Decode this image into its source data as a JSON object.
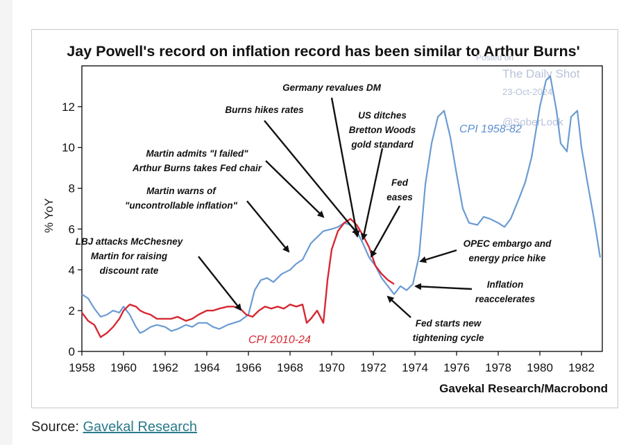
{
  "source": {
    "prefix": "Source:",
    "link_text": "Gavekal Research"
  },
  "watermark": {
    "line1": "Posted on",
    "line2": "The Daily Shot",
    "line3": "23-Oct-2024",
    "line4": "@SoberLook"
  },
  "chart_data": {
    "type": "line",
    "title": "Jay Powell's record on inflation record has been similar to Arthur Burns'",
    "ylabel": "% YoY",
    "xlabel": "",
    "credit": "Gavekal Research/Macrobond",
    "xlim": [
      1958,
      1983
    ],
    "ylim": [
      0,
      14
    ],
    "xticks": [
      1958,
      1960,
      1962,
      1964,
      1966,
      1968,
      1970,
      1972,
      1974,
      1976,
      1978,
      1980,
      1982
    ],
    "yticks": [
      0,
      2,
      4,
      6,
      8,
      10,
      12
    ],
    "grid": false,
    "series": [
      {
        "name": "CPI 1958-82",
        "color": "#6a9bd3",
        "x": [
          1958.0,
          1958.3,
          1958.6,
          1958.9,
          1959.2,
          1959.5,
          1959.8,
          1960.0,
          1960.3,
          1960.6,
          1960.8,
          1961.0,
          1961.3,
          1961.6,
          1962.0,
          1962.3,
          1962.6,
          1963.0,
          1963.3,
          1963.6,
          1964.0,
          1964.3,
          1964.6,
          1965.0,
          1965.3,
          1965.6,
          1966.0,
          1966.3,
          1966.6,
          1966.9,
          1967.2,
          1967.6,
          1968.0,
          1968.3,
          1968.6,
          1969.0,
          1969.3,
          1969.6,
          1970.0,
          1970.3,
          1970.6,
          1970.9,
          1971.2,
          1971.5,
          1971.8,
          1972.1,
          1972.4,
          1972.7,
          1973.0,
          1973.3,
          1973.6,
          1973.9,
          1974.2,
          1974.5,
          1974.8,
          1975.1,
          1975.4,
          1975.7,
          1976.0,
          1976.3,
          1976.6,
          1977.0,
          1977.3,
          1977.6,
          1978.0,
          1978.3,
          1978.6,
          1979.0,
          1979.3,
          1979.6,
          1980.0,
          1980.3,
          1980.5,
          1980.8,
          1981.0,
          1981.3,
          1981.5,
          1981.8,
          1982.0,
          1982.3,
          1982.6,
          1982.9
        ],
        "values": [
          2.8,
          2.6,
          2.1,
          1.7,
          1.8,
          2.0,
          1.9,
          2.2,
          1.8,
          1.2,
          0.9,
          1.0,
          1.2,
          1.3,
          1.2,
          1.0,
          1.1,
          1.3,
          1.2,
          1.4,
          1.4,
          1.2,
          1.1,
          1.3,
          1.4,
          1.5,
          1.8,
          3.0,
          3.5,
          3.6,
          3.4,
          3.8,
          4.0,
          4.3,
          4.5,
          5.3,
          5.6,
          5.9,
          6.0,
          6.1,
          6.3,
          6.2,
          5.9,
          5.3,
          4.6,
          4.2,
          3.6,
          3.2,
          2.8,
          3.2,
          3.0,
          3.3,
          4.7,
          8.2,
          10.2,
          11.5,
          11.8,
          10.5,
          8.7,
          7.0,
          6.3,
          6.2,
          6.6,
          6.5,
          6.3,
          6.1,
          6.5,
          7.5,
          8.3,
          9.5,
          12.0,
          13.3,
          13.5,
          11.8,
          10.2,
          9.8,
          11.5,
          11.8,
          10.0,
          8.2,
          6.5,
          4.6
        ]
      },
      {
        "name": "CPI 2010-24",
        "color": "#d62832",
        "x": [
          1958.0,
          1958.3,
          1958.6,
          1958.9,
          1959.2,
          1959.5,
          1959.8,
          1960.0,
          1960.3,
          1960.6,
          1960.8,
          1961.0,
          1961.3,
          1961.6,
          1962.0,
          1962.3,
          1962.6,
          1963.0,
          1963.3,
          1963.6,
          1964.0,
          1964.3,
          1964.6,
          1965.0,
          1965.3,
          1965.6,
          1965.9,
          1966.2,
          1966.5,
          1966.8,
          1967.1,
          1967.4,
          1967.7,
          1968.0,
          1968.3,
          1968.6,
          1968.8,
          1969.0,
          1969.3,
          1969.6,
          1969.8,
          1970.0,
          1970.3,
          1970.6,
          1970.9,
          1971.2,
          1971.5,
          1971.8,
          1972.1,
          1972.4,
          1972.7,
          1973.0
        ],
        "values": [
          1.9,
          1.5,
          1.3,
          0.7,
          0.9,
          1.2,
          1.6,
          2.0,
          2.3,
          2.2,
          2.0,
          1.9,
          1.8,
          1.6,
          1.6,
          1.6,
          1.7,
          1.5,
          1.6,
          1.8,
          2.0,
          2.0,
          2.1,
          2.2,
          2.2,
          2.1,
          1.8,
          1.7,
          2.0,
          2.2,
          2.1,
          2.2,
          2.1,
          2.3,
          2.2,
          2.3,
          1.4,
          1.6,
          2.0,
          1.4,
          3.5,
          5.0,
          5.9,
          6.3,
          6.5,
          6.2,
          5.7,
          5.1,
          4.2,
          3.8,
          3.5,
          3.3
        ]
      }
    ],
    "annotations": [
      {
        "id": "lbj",
        "lines": [
          "LBJ attacks McChesney",
          "Martin for raising",
          "discount rate"
        ]
      },
      {
        "id": "martin-warns",
        "lines": [
          "Martin warns of",
          "\"uncontrollable inflation\""
        ]
      },
      {
        "id": "martin-admits",
        "lines": [
          "Martin admits \"I failed\"",
          "Arthur Burns takes Fed chair"
        ]
      },
      {
        "id": "burns-hikes",
        "lines": [
          "Burns hikes rates"
        ]
      },
      {
        "id": "germany",
        "lines": [
          "Germany revalues DM"
        ]
      },
      {
        "id": "bretton",
        "lines": [
          "US ditches",
          "Bretton Woods",
          "gold standard"
        ]
      },
      {
        "id": "fed-eases",
        "lines": [
          "Fed",
          "eases"
        ]
      },
      {
        "id": "opec",
        "lines": [
          "OPEC embargo and",
          "energy price hike"
        ]
      },
      {
        "id": "reaccel",
        "lines": [
          "Inflation",
          "reaccelerates"
        ]
      },
      {
        "id": "tightening",
        "lines": [
          "Fed starts new",
          "tightening cycle"
        ]
      }
    ]
  }
}
